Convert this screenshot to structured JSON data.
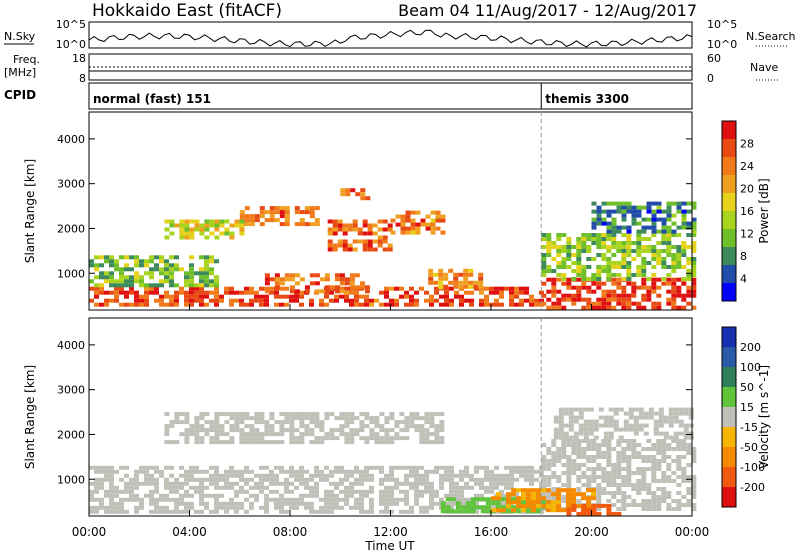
{
  "header": {
    "title": "Hokkaido East (fitACF)",
    "beam_info": "Beam 04 11/Aug/2017 - 12/Aug/2017"
  },
  "strip_labels": {
    "nsky": "N.Sky",
    "nsearch": "N.Search",
    "freq_top": "Freq.",
    "freq_unit": "[MHz]",
    "nave": "Nave",
    "cpid": "CPID",
    "left_ticks_noise": [
      "10^5",
      "10^0"
    ],
    "right_ticks_noise": [
      "10^5",
      "10^0"
    ],
    "left_ticks_freq": [
      "18",
      "8"
    ],
    "right_ticks_nave": [
      "60",
      "0"
    ]
  },
  "cpid_segments": [
    {
      "start_hour": 0,
      "label": "normal (fast) 151"
    },
    {
      "start_hour": 18,
      "label": "themis 3300"
    }
  ],
  "axes": {
    "ylabel": "Slant Range [km]",
    "xlabel": "Time UT",
    "x_tick_labels": [
      "00:00",
      "04:00",
      "08:00",
      "12:00",
      "16:00",
      "20:00",
      "00:00"
    ],
    "x_ticks_hours": [
      0,
      4,
      8,
      12,
      16,
      20,
      24
    ],
    "y_tick_labels": [
      "1000",
      "2000",
      "3000",
      "4000"
    ],
    "y_ticks_km": [
      1000,
      2000,
      3000,
      4000
    ],
    "y_range_km": [
      180,
      4600
    ],
    "x_range_hours": [
      0,
      24
    ]
  },
  "colorbars": {
    "power": {
      "label": "Power [dB]",
      "ticks": [
        "4",
        "8",
        "12",
        "16",
        "20",
        "24",
        "28"
      ],
      "colors": [
        "#0000ff",
        "#224caa",
        "#3d8b5d",
        "#6fbf2a",
        "#a8d41f",
        "#e6d21a",
        "#f0a020",
        "#f07a1a",
        "#e84a14",
        "#e01010"
      ]
    },
    "velocity": {
      "label": "Velocity [m s^-1]",
      "ticks": [
        "200",
        "100",
        "50",
        "15",
        "-15",
        "-50",
        "-100",
        "-200"
      ],
      "colors": [
        "#1a2fb0",
        "#2a5aa8",
        "#2f7f5a",
        "#5fc43a",
        "#c0c0b8",
        "#f5b500",
        "#f58a00",
        "#f05a10",
        "#e01010"
      ]
    }
  },
  "chart_data": [
    {
      "type": "heatmap",
      "title": "Power",
      "xlabel": "Time UT",
      "ylabel": "Slant Range [km]",
      "colorbar_label": "Power [dB]",
      "x_range_hours": [
        0,
        24
      ],
      "y_range_km": [
        180,
        4600
      ],
      "regions": [
        {
          "t": [
            0,
            18
          ],
          "r": [
            300,
            700
          ],
          "db": 27
        },
        {
          "t": [
            0,
            5
          ],
          "r": [
            700,
            1400
          ],
          "db": 12
        },
        {
          "t": [
            7,
            11
          ],
          "r": [
            600,
            1000
          ],
          "db": 25
        },
        {
          "t": [
            6,
            9
          ],
          "r": [
            2100,
            2500
          ],
          "db": 24
        },
        {
          "t": [
            3,
            6
          ],
          "r": [
            1800,
            2200
          ],
          "db": 17
        },
        {
          "t": [
            9.5,
            12
          ],
          "r": [
            1500,
            2200
          ],
          "db": 25
        },
        {
          "t": [
            12,
            14
          ],
          "r": [
            1900,
            2400
          ],
          "db": 24
        },
        {
          "t": [
            10,
            11
          ],
          "r": [
            2700,
            2900
          ],
          "db": 26
        },
        {
          "t": [
            13.5,
            15.5
          ],
          "r": [
            700,
            1100
          ],
          "db": 22
        },
        {
          "t": [
            18,
            24
          ],
          "r": [
            250,
            900
          ],
          "db": 28
        },
        {
          "t": [
            18,
            24
          ],
          "r": [
            900,
            1900
          ],
          "db": 13
        },
        {
          "t": [
            20,
            24
          ],
          "r": [
            1900,
            2600
          ],
          "db": 8
        }
      ]
    },
    {
      "type": "heatmap",
      "title": "Velocity",
      "xlabel": "Time UT",
      "ylabel": "Slant Range [km]",
      "colorbar_label": "Velocity [m s^-1]",
      "x_range_hours": [
        0,
        24
      ],
      "y_range_km": [
        180,
        4600
      ],
      "regions": [
        {
          "t": [
            0,
            18
          ],
          "r": [
            300,
            1300
          ],
          "v": 0
        },
        {
          "t": [
            3,
            14
          ],
          "r": [
            1800,
            2500
          ],
          "v": 0
        },
        {
          "t": [
            18,
            24
          ],
          "r": [
            300,
            1900
          ],
          "v": 0
        },
        {
          "t": [
            14,
            18
          ],
          "r": [
            300,
            600
          ],
          "v": 30
        },
        {
          "t": [
            16,
            20
          ],
          "r": [
            350,
            800
          ],
          "v": -60
        },
        {
          "t": [
            19,
            21
          ],
          "r": [
            200,
            450
          ],
          "v": -120
        },
        {
          "t": [
            18.5,
            24
          ],
          "r": [
            1900,
            2600
          ],
          "v": 0
        }
      ]
    }
  ]
}
